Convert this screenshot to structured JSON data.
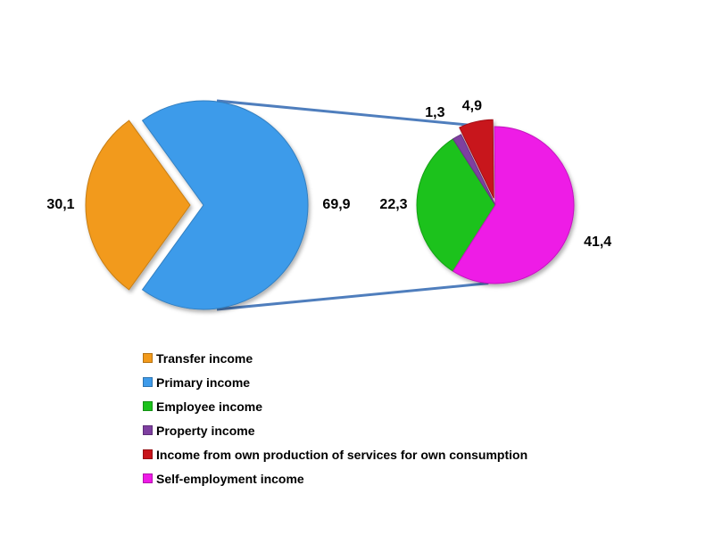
{
  "chart_data": {
    "type": "pie",
    "variant": "pie-of-pie",
    "main_pie": {
      "slices": [
        {
          "name": "Transfer income",
          "value": 30.1,
          "label": "30,1",
          "color": "#F29A1B",
          "exploded": true
        },
        {
          "name": "Primary income",
          "value": 69.9,
          "label": "69,9",
          "color": "#3E9BEA",
          "exploded": false
        }
      ]
    },
    "secondary_pie": {
      "breakdown_of": "Primary income",
      "slices": [
        {
          "name": "Employee income",
          "value": 22.3,
          "label": "22,3",
          "color": "#1BC21B"
        },
        {
          "name": "Property income",
          "value": 1.3,
          "label": "1,3",
          "color": "#7E3FA0"
        },
        {
          "name": "Income from own production of services for own consumption",
          "value": 4.9,
          "label": "4,9",
          "color": "#C8141B"
        },
        {
          "name": "Self-employment income",
          "value": 41.4,
          "label": "41,4",
          "color": "#EE1BE6"
        }
      ]
    },
    "connector_color": "#4F7EBD",
    "legend": {
      "placement": "bottom-left",
      "items": [
        {
          "label": "Transfer income",
          "color": "#F29A1B"
        },
        {
          "label": "Primary income",
          "color": "#3E9BEA"
        },
        {
          "label": "Employee income",
          "color": "#1BC21B"
        },
        {
          "label": "Property income",
          "color": "#7E3FA0"
        },
        {
          "label": "Income from own production of services for own consumption",
          "color": "#C8141B"
        },
        {
          "label": "Self-employment income",
          "color": "#EE1BE6"
        }
      ]
    }
  }
}
